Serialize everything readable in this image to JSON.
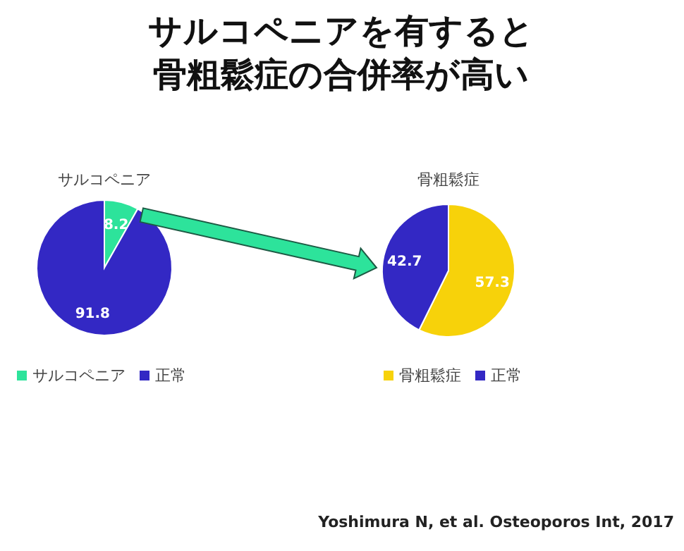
{
  "chart_data": [
    {
      "type": "pie",
      "title": "サルコペニア",
      "categories": [
        "サルコペニア",
        "正常"
      ],
      "values": [
        8.2,
        91.8
      ],
      "colors": [
        "#2de39b",
        "#3328c4"
      ],
      "data_labels": true,
      "legend": "bottom",
      "annotations": [
        "サルコペニアを有すると",
        "骨粗鬆症の合併率が高い"
      ]
    },
    {
      "type": "pie",
      "title": "骨粗鬆症",
      "categories": [
        "骨粗鬆症",
        "正常"
      ],
      "values": [
        57.3,
        42.7
      ],
      "colors": [
        "#f7d20a",
        "#3328c4"
      ],
      "data_labels": true,
      "legend": "bottom",
      "annotations": [
        "Yoshimura N, et al. Osteoporos Int, 2017"
      ]
    }
  ]
}
